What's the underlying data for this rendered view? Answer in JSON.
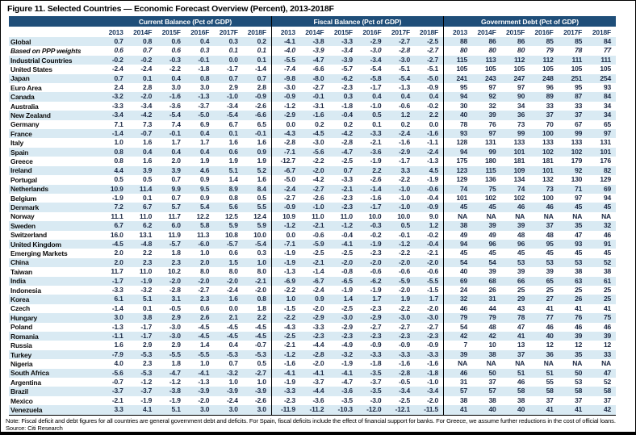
{
  "title": "Figure 11. Selected Countries — Economic Forecast Overview (Percent), 2013-2018F",
  "note": "Note: Fiscal deficit and debt figures for all countries are general government debt and deficits. For Spain, fiscal deficits include the effect of financial support for banks. For Greece, we assume further reductions in the cost of official loans. Source: Citi Research",
  "colors": {
    "header_bg": "#1F4E79",
    "row_stripe": "#D9EAF3",
    "year_text": "#17365D",
    "divider": "#000000"
  },
  "table": {
    "groups": [
      {
        "label": "Current Balance (Pct of GDP)"
      },
      {
        "label": "Fiscal Balance (Pct of GDP)"
      },
      {
        "label": "Government Debt (Pct of GDP)"
      }
    ],
    "years": [
      "2013",
      "2014F",
      "2015F",
      "2016F",
      "2017F",
      "2018F"
    ],
    "rows": [
      {
        "name": "Global",
        "cb": [
          "0.7",
          "0.8",
          "0.6",
          "0.4",
          "0.3",
          "0.2"
        ],
        "fb": [
          "-4.1",
          "-3.8",
          "-3.3",
          "-2.9",
          "-2.7",
          "-2.5"
        ],
        "debt": [
          "88",
          "86",
          "86",
          "85",
          "85",
          "84"
        ]
      },
      {
        "name": "Based on PPP weights",
        "italic": true,
        "cb": [
          "0.6",
          "0.7",
          "0.6",
          "0.3",
          "0.1",
          "0.1"
        ],
        "fb": [
          "-4.0",
          "-3.9",
          "-3.4",
          "-3.0",
          "-2.8",
          "-2.7"
        ],
        "debt": [
          "80",
          "80",
          "80",
          "79",
          "78",
          "77"
        ]
      },
      {
        "name": "Industrial Countries",
        "cb": [
          "-0.2",
          "-0.2",
          "-0.3",
          "-0.1",
          "0.0",
          "0.1"
        ],
        "fb": [
          "-5.5",
          "-4.7",
          "-3.9",
          "-3.4",
          "-3.0",
          "-2.7"
        ],
        "debt": [
          "115",
          "113",
          "112",
          "112",
          "111",
          "111"
        ]
      },
      {
        "name": "United States",
        "cb": [
          "-2.4",
          "-2.4",
          "-2.2",
          "-1.8",
          "-1.7",
          "-1.4"
        ],
        "fb": [
          "-7.4",
          "-6.6",
          "-5.7",
          "-5.4",
          "-5.1",
          "-5.1"
        ],
        "debt": [
          "105",
          "105",
          "105",
          "105",
          "105",
          "105"
        ]
      },
      {
        "name": "Japan",
        "cb": [
          "0.7",
          "0.1",
          "0.4",
          "0.8",
          "0.7",
          "0.7"
        ],
        "fb": [
          "-9.8",
          "-8.0",
          "-6.2",
          "-5.8",
          "-5.4",
          "-5.0"
        ],
        "debt": [
          "241",
          "243",
          "247",
          "248",
          "251",
          "254"
        ]
      },
      {
        "name": "Euro Area",
        "cb": [
          "2.4",
          "2.8",
          "3.0",
          "3.0",
          "2.9",
          "2.8"
        ],
        "fb": [
          "-3.0",
          "-2.7",
          "-2.3",
          "-1.7",
          "-1.3",
          "-0.9"
        ],
        "debt": [
          "95",
          "97",
          "97",
          "96",
          "95",
          "93"
        ]
      },
      {
        "name": "Canada",
        "cb": [
          "-3.2",
          "-2.0",
          "-1.6",
          "-1.3",
          "-1.0",
          "-0.9"
        ],
        "fb": [
          "-0.9",
          "-0.1",
          "0.3",
          "0.4",
          "0.4",
          "0.4"
        ],
        "debt": [
          "94",
          "92",
          "90",
          "89",
          "87",
          "84"
        ]
      },
      {
        "name": "Australia",
        "cb": [
          "-3.3",
          "-3.4",
          "-3.6",
          "-3.7",
          "-3.4",
          "-2.6"
        ],
        "fb": [
          "-1.2",
          "-3.1",
          "-1.8",
          "-1.0",
          "-0.6",
          "-0.2"
        ],
        "debt": [
          "30",
          "32",
          "34",
          "33",
          "33",
          "34"
        ]
      },
      {
        "name": "New Zealand",
        "cb": [
          "-3.4",
          "-4.2",
          "-5.4",
          "-5.0",
          "-5.4",
          "-6.6"
        ],
        "fb": [
          "-2.9",
          "-1.6",
          "-0.4",
          "0.5",
          "1.2",
          "2.2"
        ],
        "debt": [
          "40",
          "39",
          "36",
          "37",
          "37",
          "34"
        ]
      },
      {
        "name": "Germany",
        "cb": [
          "7.1",
          "7.3",
          "7.4",
          "6.9",
          "6.7",
          "6.5"
        ],
        "fb": [
          "0.0",
          "0.2",
          "0.2",
          "0.1",
          "0.2",
          "0.0"
        ],
        "debt": [
          "78",
          "76",
          "73",
          "70",
          "67",
          "65"
        ]
      },
      {
        "name": "France",
        "cb": [
          "-1.4",
          "-0.7",
          "-0.1",
          "0.4",
          "0.1",
          "-0.1"
        ],
        "fb": [
          "-4.3",
          "-4.5",
          "-4.2",
          "-3.3",
          "-2.4",
          "-1.6"
        ],
        "debt": [
          "93",
          "97",
          "99",
          "100",
          "99",
          "97"
        ]
      },
      {
        "name": "Italy",
        "cb": [
          "1.0",
          "1.6",
          "1.7",
          "1.7",
          "1.6",
          "1.6"
        ],
        "fb": [
          "-2.8",
          "-3.0",
          "-2.8",
          "-2.1",
          "-1.6",
          "-1.1"
        ],
        "debt": [
          "128",
          "131",
          "133",
          "133",
          "133",
          "131"
        ]
      },
      {
        "name": "Spain",
        "cb": [
          "0.8",
          "0.4",
          "0.4",
          "0.4",
          "0.6",
          "0.9"
        ],
        "fb": [
          "-7.1",
          "-5.6",
          "-4.7",
          "-3.6",
          "-2.9",
          "-2.4"
        ],
        "debt": [
          "94",
          "99",
          "101",
          "102",
          "102",
          "101"
        ]
      },
      {
        "name": "Greece",
        "cb": [
          "0.8",
          "1.6",
          "2.0",
          "1.9",
          "1.9",
          "1.9"
        ],
        "fb": [
          "-12.7",
          "-2.2",
          "-2.5",
          "-1.9",
          "-1.7",
          "-1.3"
        ],
        "debt": [
          "175",
          "180",
          "181",
          "181",
          "179",
          "176"
        ]
      },
      {
        "name": "Ireland",
        "cb": [
          "4.4",
          "3.9",
          "3.9",
          "4.6",
          "5.1",
          "5.2"
        ],
        "fb": [
          "-6.7",
          "-2.0",
          "0.7",
          "2.2",
          "3.3",
          "4.5"
        ],
        "debt": [
          "123",
          "115",
          "109",
          "101",
          "92",
          "82"
        ]
      },
      {
        "name": "Portugal",
        "cb": [
          "0.5",
          "0.5",
          "0.7",
          "0.9",
          "1.4",
          "1.6"
        ],
        "fb": [
          "-5.0",
          "-4.2",
          "-3.3",
          "-2.6",
          "-2.2",
          "-1.9"
        ],
        "debt": [
          "129",
          "136",
          "134",
          "132",
          "130",
          "129"
        ]
      },
      {
        "name": "Netherlands",
        "cb": [
          "10.9",
          "11.4",
          "9.9",
          "9.5",
          "8.9",
          "8.4"
        ],
        "fb": [
          "-2.4",
          "-2.7",
          "-2.1",
          "-1.4",
          "-1.0",
          "-0.6"
        ],
        "debt": [
          "74",
          "75",
          "74",
          "73",
          "71",
          "69"
        ]
      },
      {
        "name": "Belgium",
        "cb": [
          "-1.9",
          "0.1",
          "0.7",
          "0.9",
          "0.8",
          "0.5"
        ],
        "fb": [
          "-2.7",
          "-2.6",
          "-2.3",
          "-1.6",
          "-1.0",
          "-0.4"
        ],
        "debt": [
          "101",
          "102",
          "102",
          "100",
          "97",
          "94"
        ]
      },
      {
        "name": "Denmark",
        "cb": [
          "7.2",
          "6.7",
          "5.7",
          "5.4",
          "5.6",
          "5.5"
        ],
        "fb": [
          "-0.9",
          "-1.0",
          "-2.3",
          "-1.7",
          "-1.0",
          "-0.9"
        ],
        "debt": [
          "45",
          "45",
          "46",
          "46",
          "45",
          "45"
        ]
      },
      {
        "name": "Norway",
        "cb": [
          "11.1",
          "11.0",
          "11.7",
          "12.2",
          "12.5",
          "12.4"
        ],
        "fb": [
          "10.9",
          "11.0",
          "11.0",
          "10.0",
          "10.0",
          "9.0"
        ],
        "debt": [
          "NA",
          "NA",
          "NA",
          "NA",
          "NA",
          "NA"
        ]
      },
      {
        "name": "Sweden",
        "cb": [
          "6.7",
          "6.2",
          "6.0",
          "5.8",
          "5.9",
          "5.9"
        ],
        "fb": [
          "-1.2",
          "-2.1",
          "-1.2",
          "-0.3",
          "0.5",
          "1.2"
        ],
        "debt": [
          "38",
          "39",
          "39",
          "37",
          "35",
          "32"
        ]
      },
      {
        "name": "Switzerland",
        "cb": [
          "16.0",
          "13.1",
          "11.9",
          "11.3",
          "10.8",
          "10.0"
        ],
        "fb": [
          "0.0",
          "-0.6",
          "-0.4",
          "-0.2",
          "-0.1",
          "-0.2"
        ],
        "debt": [
          "49",
          "49",
          "48",
          "48",
          "47",
          "46"
        ]
      },
      {
        "name": "United Kingdom",
        "cb": [
          "-4.5",
          "-4.8",
          "-5.7",
          "-6.0",
          "-5.7",
          "-5.4"
        ],
        "fb": [
          "-7.1",
          "-5.9",
          "-4.1",
          "-1.9",
          "-1.2",
          "-0.4"
        ],
        "debt": [
          "94",
          "96",
          "96",
          "95",
          "93",
          "91"
        ]
      },
      {
        "name": "Emerging Markets",
        "cb": [
          "2.0",
          "2.2",
          "1.8",
          "1.0",
          "0.6",
          "0.3"
        ],
        "fb": [
          "-1.9",
          "-2.5",
          "-2.5",
          "-2.3",
          "-2.2",
          "-2.1"
        ],
        "debt": [
          "45",
          "45",
          "45",
          "45",
          "45",
          "45"
        ]
      },
      {
        "name": "China",
        "cb": [
          "2.0",
          "2.3",
          "2.3",
          "2.0",
          "1.5",
          "1.0"
        ],
        "fb": [
          "-1.9",
          "-2.1",
          "-2.0",
          "-2.0",
          "-2.0",
          "-2.0"
        ],
        "debt": [
          "54",
          "54",
          "53",
          "53",
          "53",
          "52"
        ]
      },
      {
        "name": "Taiwan",
        "cb": [
          "11.7",
          "11.0",
          "10.2",
          "8.0",
          "8.0",
          "8.0"
        ],
        "fb": [
          "-1.3",
          "-1.4",
          "-0.8",
          "-0.6",
          "-0.6",
          "-0.6"
        ],
        "debt": [
          "40",
          "39",
          "39",
          "39",
          "38",
          "38"
        ]
      },
      {
        "name": "India",
        "cb": [
          "-1.7",
          "-1.9",
          "-2.0",
          "-2.0",
          "-2.0",
          "-2.1"
        ],
        "fb": [
          "-6.9",
          "-6.7",
          "-6.5",
          "-6.2",
          "-5.9",
          "-5.5"
        ],
        "debt": [
          "69",
          "68",
          "66",
          "65",
          "63",
          "61"
        ]
      },
      {
        "name": "Indonesia",
        "cb": [
          "-3.3",
          "-3.2",
          "-2.8",
          "-2.7",
          "-2.4",
          "-2.0"
        ],
        "fb": [
          "-2.2",
          "-2.4",
          "-1.9",
          "-1.9",
          "-2.0",
          "-1.5"
        ],
        "debt": [
          "24",
          "26",
          "25",
          "25",
          "25",
          "25"
        ]
      },
      {
        "name": "Korea",
        "cb": [
          "6.1",
          "5.1",
          "3.1",
          "2.3",
          "1.6",
          "0.8"
        ],
        "fb": [
          "1.0",
          "0.9",
          "1.4",
          "1.7",
          "1.9",
          "1.7"
        ],
        "debt": [
          "32",
          "31",
          "29",
          "27",
          "26",
          "25"
        ]
      },
      {
        "name": "Czech",
        "cb": [
          "-1.4",
          "0.1",
          "-0.5",
          "0.6",
          "0.0",
          "1.8"
        ],
        "fb": [
          "-1.5",
          "-2.0",
          "-2.5",
          "-2.3",
          "-2.2",
          "-2.0"
        ],
        "debt": [
          "46",
          "44",
          "43",
          "41",
          "41",
          "41"
        ]
      },
      {
        "name": "Hungary",
        "cb": [
          "3.0",
          "3.8",
          "2.9",
          "2.6",
          "2.1",
          "2.2"
        ],
        "fb": [
          "-2.2",
          "-2.9",
          "-3.0",
          "-2.9",
          "-3.0",
          "-3.0"
        ],
        "debt": [
          "79",
          "79",
          "78",
          "77",
          "76",
          "75"
        ]
      },
      {
        "name": "Poland",
        "cb": [
          "-1.3",
          "-1.7",
          "-3.0",
          "-4.5",
          "-4.5",
          "-4.5"
        ],
        "fb": [
          "-4.3",
          "-3.3",
          "-2.9",
          "-2.7",
          "-2.7",
          "-2.7"
        ],
        "debt": [
          "54",
          "48",
          "47",
          "46",
          "46",
          "46"
        ]
      },
      {
        "name": "Romania",
        "cb": [
          "-1.1",
          "-1.7",
          "-3.0",
          "-4.5",
          "-4.5",
          "-4.5"
        ],
        "fb": [
          "-2.5",
          "-2.3",
          "-2.3",
          "-2.3",
          "-2.3",
          "-2.3"
        ],
        "debt": [
          "42",
          "42",
          "41",
          "40",
          "39",
          "39"
        ]
      },
      {
        "name": "Russia",
        "cb": [
          "1.6",
          "2.9",
          "2.9",
          "1.4",
          "0.4",
          "-0.7"
        ],
        "fb": [
          "-2.1",
          "-4.4",
          "-4.9",
          "-0.9",
          "-0.9",
          "-0.9"
        ],
        "debt": [
          "7",
          "10",
          "13",
          "12",
          "12",
          "12"
        ]
      },
      {
        "name": "Turkey",
        "cb": [
          "-7.9",
          "-5.3",
          "-5.5",
          "-5.5",
          "-5.3",
          "-5.3"
        ],
        "fb": [
          "-1.2",
          "-2.8",
          "-3.2",
          "-3.3",
          "-3.3",
          "-3.3"
        ],
        "debt": [
          "39",
          "38",
          "37",
          "36",
          "35",
          "33"
        ]
      },
      {
        "name": "Nigeria",
        "cb": [
          "4.0",
          "2.3",
          "1.8",
          "1.0",
          "0.7",
          "0.5"
        ],
        "fb": [
          "-1.6",
          "-2.0",
          "-1.9",
          "-1.8",
          "-1.6",
          "-1.6"
        ],
        "debt": [
          "NA",
          "NA",
          "NA",
          "NA",
          "NA",
          "NA"
        ]
      },
      {
        "name": "South Africa",
        "cb": [
          "-5.6",
          "-5.3",
          "-4.7",
          "-4.1",
          "-3.2",
          "-2.7"
        ],
        "fb": [
          "-4.1",
          "-4.1",
          "-4.1",
          "-3.5",
          "-2.8",
          "-1.8"
        ],
        "debt": [
          "46",
          "50",
          "51",
          "51",
          "50",
          "47"
        ]
      },
      {
        "name": "Argentina",
        "cb": [
          "-0.7",
          "-1.2",
          "-1.2",
          "-1.3",
          "1.0",
          "1.0"
        ],
        "fb": [
          "-1.9",
          "-3.7",
          "-4.7",
          "-3.7",
          "-0.5",
          "-1.0"
        ],
        "debt": [
          "31",
          "37",
          "46",
          "55",
          "53",
          "52"
        ]
      },
      {
        "name": "Brazil",
        "cb": [
          "-3.7",
          "-3.7",
          "-3.8",
          "-3.9",
          "-3.9",
          "-3.9"
        ],
        "fb": [
          "-3.3",
          "-4.4",
          "-3.6",
          "-3.5",
          "-3.4",
          "-3.4"
        ],
        "debt": [
          "57",
          "57",
          "58",
          "58",
          "58",
          "58"
        ]
      },
      {
        "name": "Mexico",
        "cb": [
          "-2.1",
          "-1.9",
          "-1.9",
          "-2.0",
          "-2.4",
          "-2.6"
        ],
        "fb": [
          "-2.3",
          "-3.6",
          "-3.5",
          "-3.0",
          "-2.5",
          "-2.0"
        ],
        "debt": [
          "38",
          "38",
          "38",
          "37",
          "37",
          "37"
        ]
      },
      {
        "name": "Venezuela",
        "cb": [
          "3.3",
          "4.1",
          "5.1",
          "3.0",
          "3.0",
          "3.0"
        ],
        "fb": [
          "-11.9",
          "-11.2",
          "-10.3",
          "-12.0",
          "-12.1",
          "-11.5"
        ],
        "debt": [
          "41",
          "40",
          "40",
          "41",
          "41",
          "42"
        ]
      }
    ]
  }
}
